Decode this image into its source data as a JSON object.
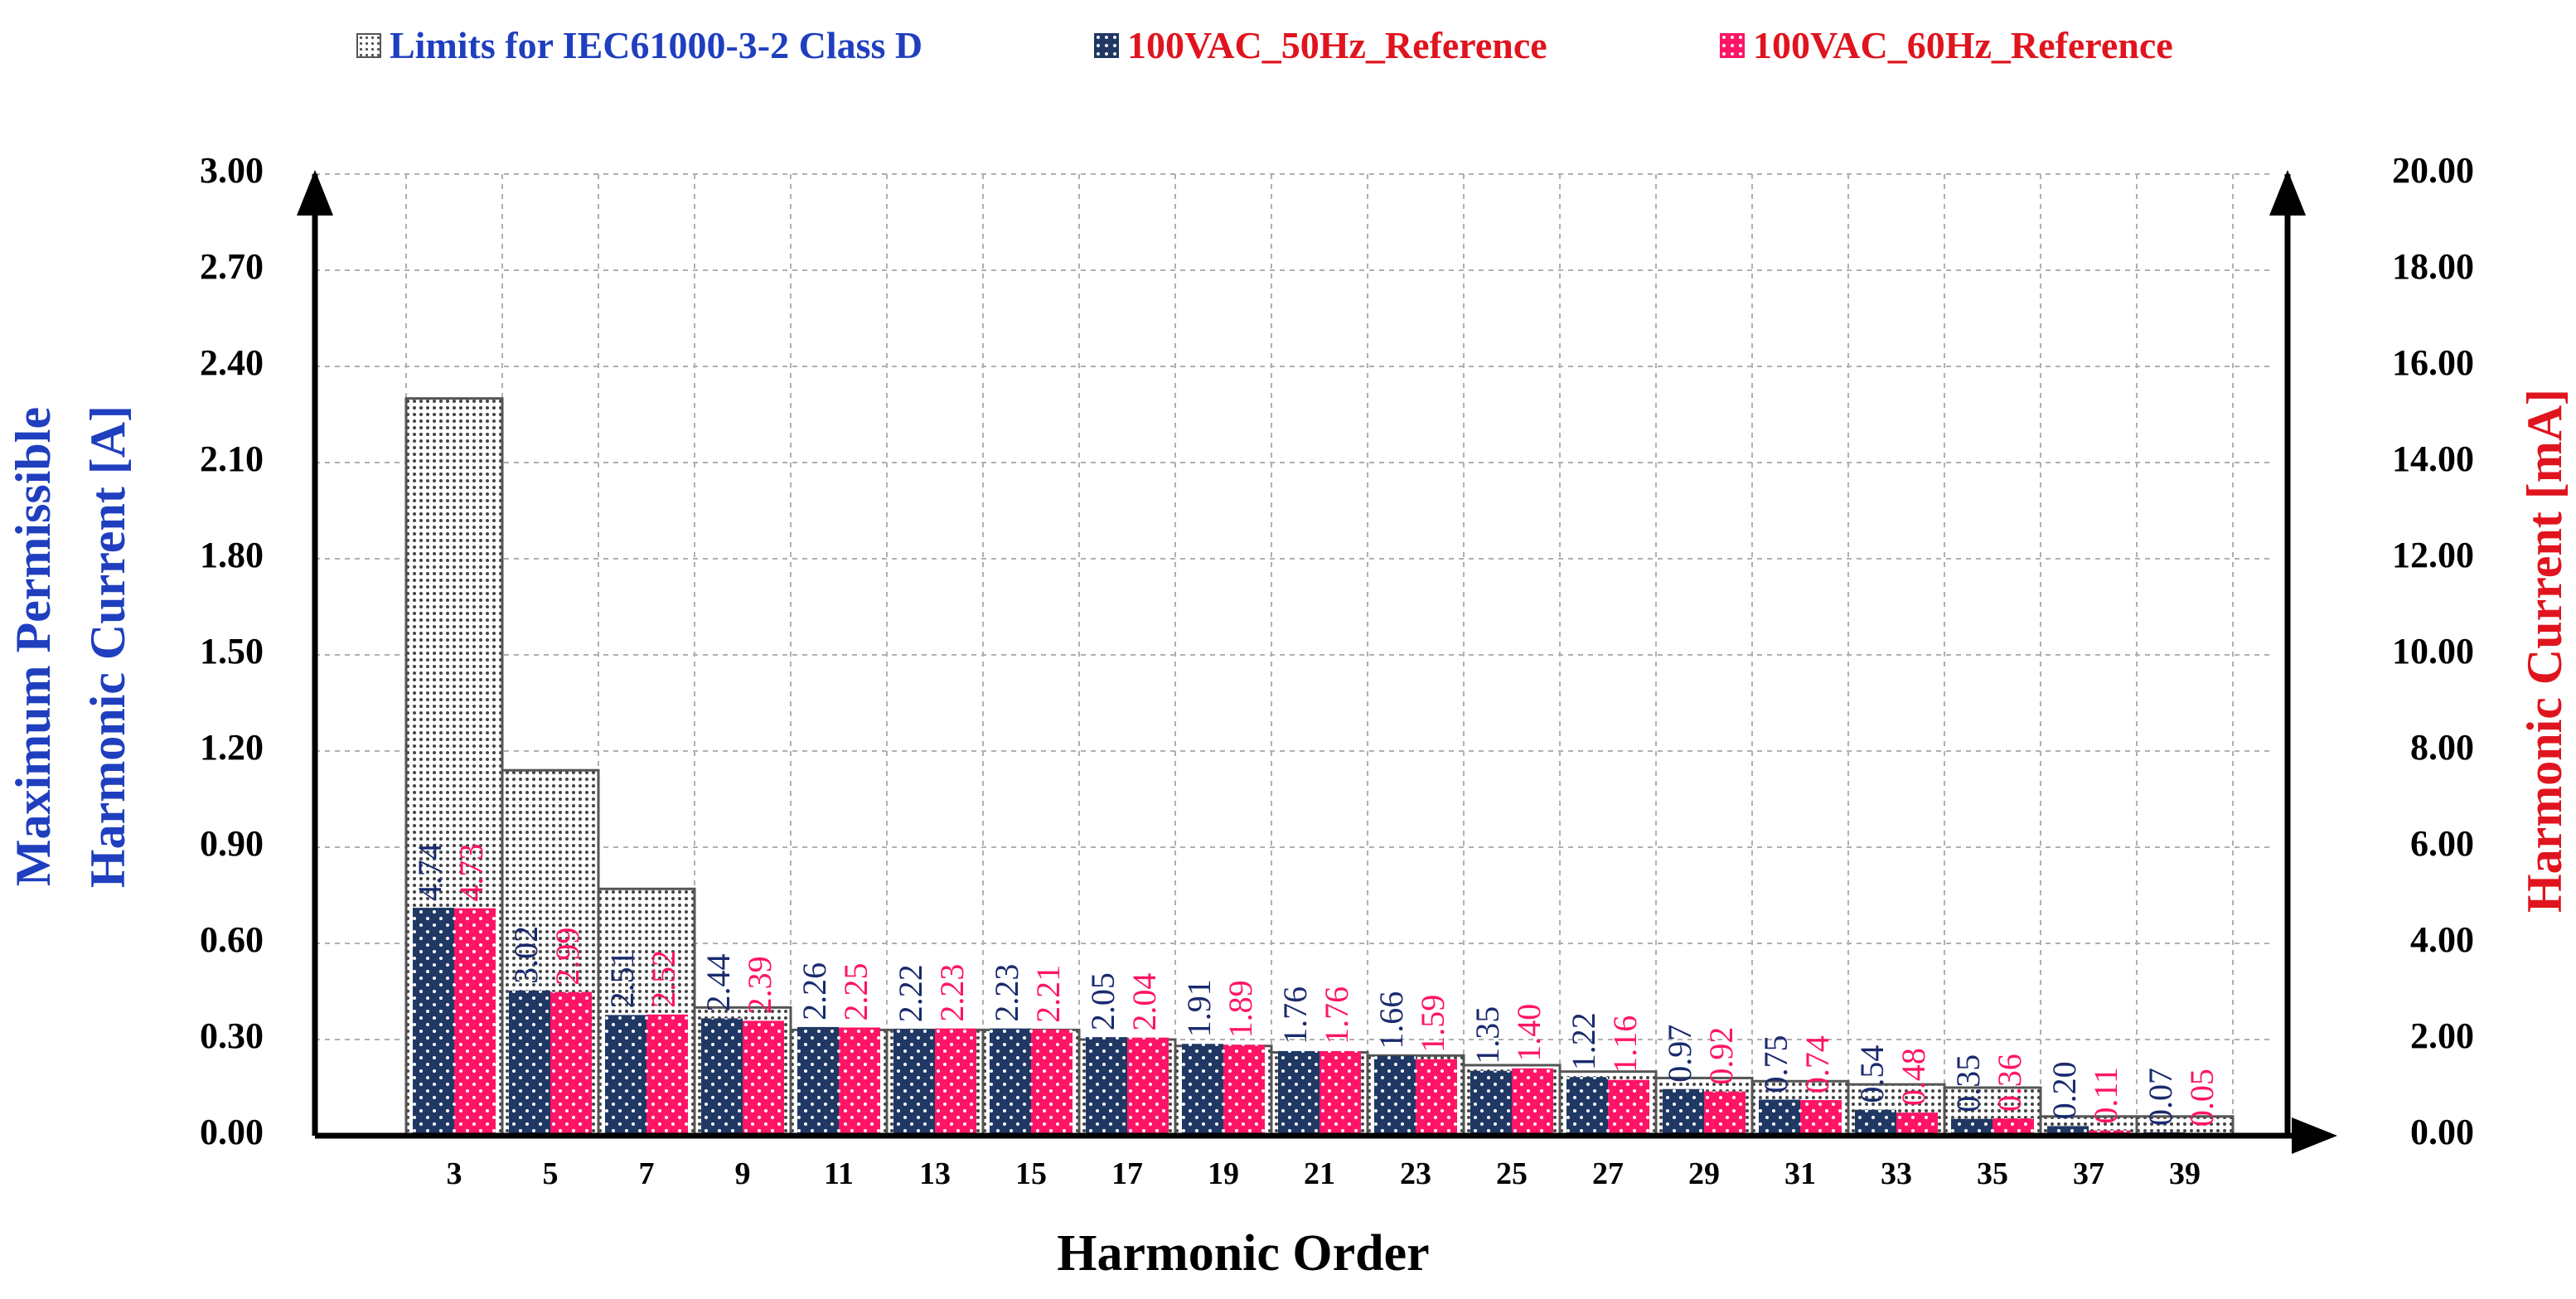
{
  "legend": {
    "limits": "Limits for IEC61000-3-2 Class D",
    "s50": "100VAC_50Hz_Reference",
    "s60": "100VAC_60Hz_Reference"
  },
  "colors": {
    "limit_text": "#1f3fbf",
    "s50_bar": "#1f3864",
    "s50_label": "#1a2a6e",
    "s60_bar": "#ff1466",
    "s60_label": "#ff1466",
    "s60_legend_text": "#e0141e",
    "left_title": "#1f3fbf",
    "right_title": "#e0141e",
    "axis": "#000000",
    "grid": "#b0b0b0"
  },
  "chart_data": {
    "type": "bar",
    "categories": [
      "3",
      "5",
      "7",
      "9",
      "11",
      "13",
      "15",
      "17",
      "19",
      "21",
      "23",
      "25",
      "27",
      "29",
      "31",
      "33",
      "35",
      "37",
      "39"
    ],
    "xlabel": "Harmonic Order",
    "ylabel_left": [
      "Maximum Permissible",
      "Harmonic Current [A]"
    ],
    "ylabel_right": "Harmonic Current [mA]",
    "ylim_left": [
      0,
      3.0
    ],
    "ylim_right": [
      0,
      20.0
    ],
    "yticks_left": [
      "0.00",
      "0.30",
      "0.60",
      "0.90",
      "1.20",
      "1.50",
      "1.80",
      "2.10",
      "2.40",
      "2.70",
      "3.00"
    ],
    "yticks_right": [
      "0.00",
      "2.00",
      "4.00",
      "6.00",
      "8.00",
      "10.00",
      "12.00",
      "14.00",
      "16.00",
      "18.00",
      "20.00"
    ],
    "grid": true,
    "legend_position": "top",
    "series": [
      {
        "name": "Limits for IEC61000-3-2 Class D",
        "axis": "left",
        "values": [
          2.3,
          1.14,
          0.77,
          0.4,
          0.33,
          0.33,
          0.33,
          0.3,
          0.28,
          0.26,
          0.25,
          0.22,
          0.2,
          0.18,
          0.17,
          0.16,
          0.15,
          0.06,
          0.06
        ]
      },
      {
        "name": "100VAC_50Hz_Reference",
        "axis": "right",
        "values": [
          4.74,
          3.02,
          2.51,
          2.44,
          2.26,
          2.22,
          2.23,
          2.05,
          1.91,
          1.76,
          1.66,
          1.35,
          1.22,
          0.97,
          0.75,
          0.54,
          0.35,
          0.2,
          0.07
        ],
        "labels": [
          "4.74",
          "3.02",
          "2.51",
          "2.44",
          "2.26",
          "2.22",
          "2.23",
          "2.05",
          "1.91",
          "1.76",
          "1.66",
          "1.35",
          "1.22",
          "0.97",
          "0.75",
          "0.54",
          "0.35",
          "0.20",
          "0.07"
        ]
      },
      {
        "name": "100VAC_60Hz_Reference",
        "axis": "right",
        "values": [
          4.73,
          2.99,
          2.52,
          2.39,
          2.25,
          2.23,
          2.21,
          2.04,
          1.89,
          1.76,
          1.59,
          1.4,
          1.16,
          0.92,
          0.74,
          0.48,
          0.36,
          0.11,
          0.05
        ],
        "labels": [
          "4.73",
          "2.99",
          "2.52",
          "2.39",
          "2.25",
          "2.23",
          "2.21",
          "2.04",
          "1.89",
          "1.76",
          "1.59",
          "1.40",
          "1.16",
          "0.92",
          "0.74",
          "0.48",
          "0.36",
          "0.11",
          "0.05"
        ]
      }
    ]
  }
}
